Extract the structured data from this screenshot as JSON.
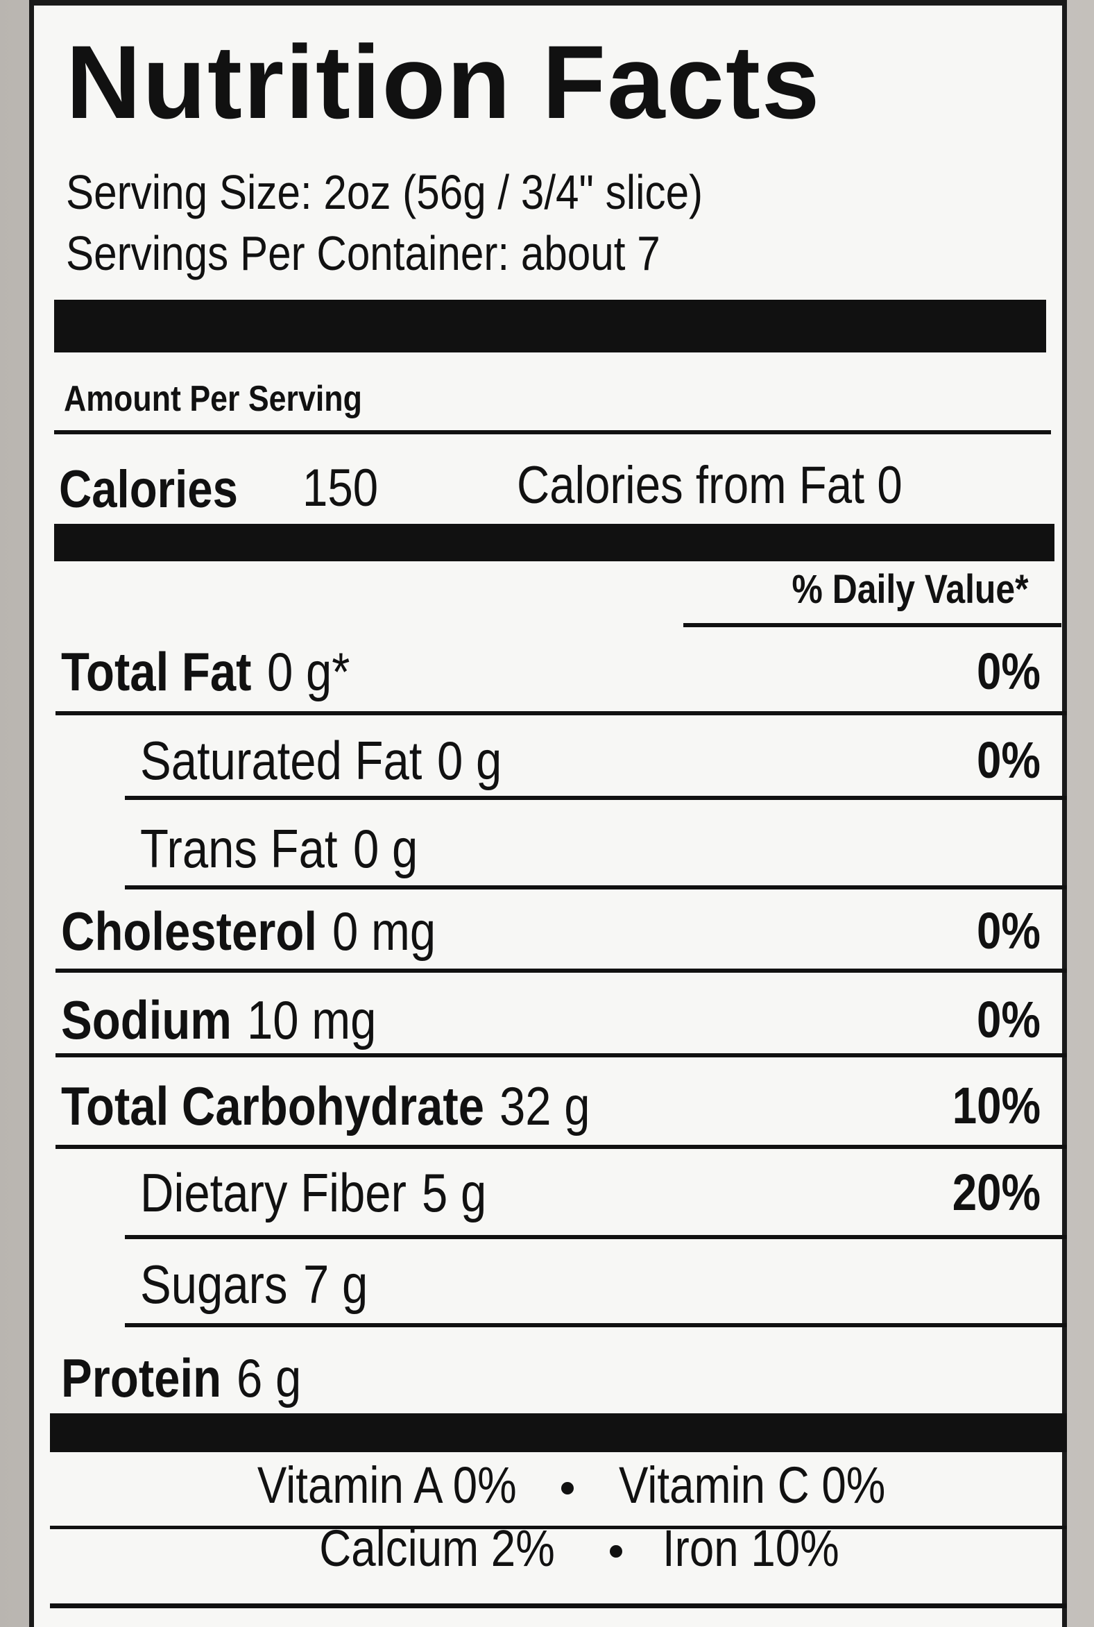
{
  "title": "Nutrition Facts",
  "serving_size": "Serving Size: 2oz (56g / 3/4\" slice)",
  "servings_per_container": "Servings Per Container: about 7",
  "amount_per_serving": "Amount Per Serving",
  "calories": {
    "label": "Calories",
    "value": "150",
    "from_fat": "Calories from Fat 0"
  },
  "daily_value_header": "% Daily Value*",
  "nutrients": [
    {
      "name": "Total Fat",
      "amount": "0 g*",
      "dv": "0%"
    },
    {
      "name": "Saturated Fat",
      "amount": "0 g",
      "dv": "0%"
    },
    {
      "name": "Trans Fat",
      "amount": "0 g"
    },
    {
      "name": "Cholesterol",
      "amount": "0 mg",
      "dv": "0%"
    },
    {
      "name": "Sodium",
      "amount": "10 mg",
      "dv": "0%"
    },
    {
      "name": "Total Carbohydrate",
      "amount": "32 g",
      "dv": "10%"
    },
    {
      "name": "Dietary Fiber",
      "amount": "5 g",
      "dv": "20%"
    },
    {
      "name": "Sugars",
      "amount": "7 g"
    },
    {
      "name": "Protein",
      "amount": "6 g"
    }
  ],
  "vitamins": [
    "Vitamin A 0%",
    "Vitamin C 0%",
    "Calcium 2%",
    "Iron 10%"
  ]
}
